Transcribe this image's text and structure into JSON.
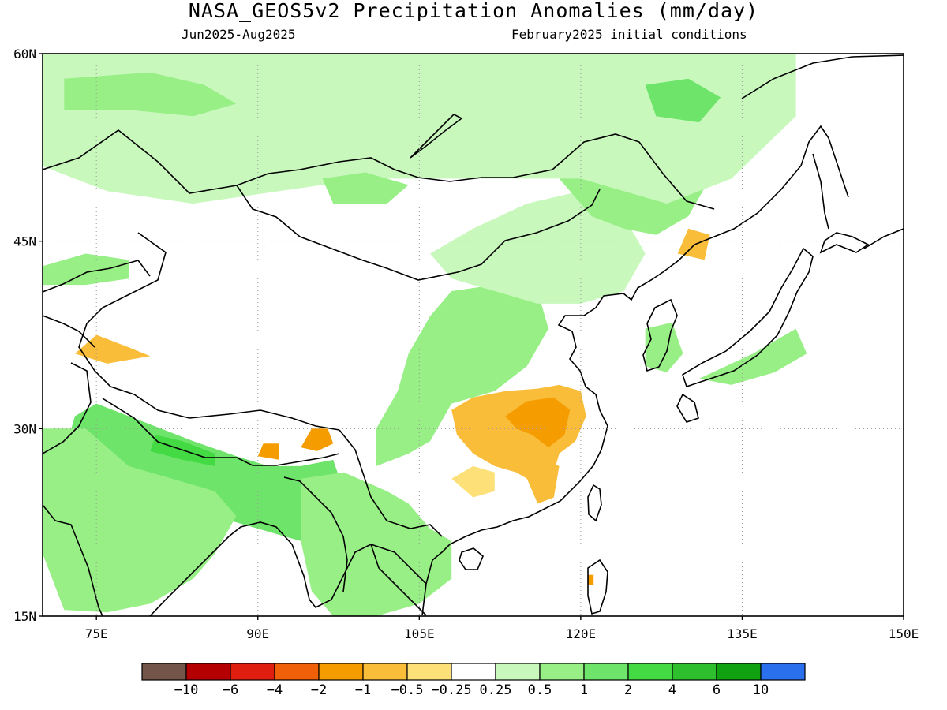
{
  "title": "NASA_GEOS5v2 Precipitation Anomalies (mm/day)",
  "subtitle_left": "Jun2025-Aug2025",
  "subtitle_right": "February2025 initial conditions",
  "map": {
    "lon_range": [
      70,
      150
    ],
    "lat_range": [
      15,
      60
    ],
    "lat_ticks": [
      {
        "value": 60,
        "label": "60N"
      },
      {
        "value": 45,
        "label": "45N"
      },
      {
        "value": 30,
        "label": "30N"
      },
      {
        "value": 15,
        "label": "15N"
      }
    ],
    "lon_ticks": [
      {
        "value": 75,
        "label": "75E"
      },
      {
        "value": 90,
        "label": "90E"
      },
      {
        "value": 105,
        "label": "105E"
      },
      {
        "value": 120,
        "label": "120E"
      },
      {
        "value": 135,
        "label": "135E"
      },
      {
        "value": 150,
        "label": "150E"
      }
    ],
    "grid": "dotted"
  },
  "colorbar": {
    "colors": [
      "#74554a",
      "#b40000",
      "#e01e10",
      "#f06008",
      "#f59d00",
      "#f9bd3a",
      "#fde178",
      "#ffffff",
      "#c8f8bc",
      "#97ef86",
      "#6ee46a",
      "#44da44",
      "#2ebf2e",
      "#11a211",
      "#2a70ec"
    ],
    "labels": [
      "-10",
      "-6",
      "-4",
      "-2",
      "-1",
      "-0.5",
      "-0.25",
      "0.25",
      "0.5",
      "1",
      "2",
      "4",
      "6",
      "10"
    ]
  },
  "regions": [
    {
      "name": "dry-anomaly-yangtze",
      "value": -1,
      "color": "#f9bd3a",
      "points": [
        [
          108,
          31.5
        ],
        [
          110,
          32.5
        ],
        [
          113,
          33
        ],
        [
          116,
          33.2
        ],
        [
          118,
          33.5
        ],
        [
          120,
          33
        ],
        [
          120.5,
          31
        ],
        [
          119.5,
          29
        ],
        [
          118,
          28
        ],
        [
          117.5,
          26.5
        ],
        [
          116,
          25.5
        ],
        [
          114,
          26.5
        ],
        [
          112,
          27
        ],
        [
          110,
          28
        ],
        [
          108.5,
          29.5
        ]
      ]
    },
    {
      "name": "dry-anomaly-yangtze-core",
      "value": -2,
      "color": "#f59d00",
      "points": [
        [
          113,
          31
        ],
        [
          115,
          32.2
        ],
        [
          117.5,
          32.5
        ],
        [
          119,
          31.5
        ],
        [
          118.5,
          29.5
        ],
        [
          117,
          28.5
        ],
        [
          115.5,
          29.5
        ],
        [
          114,
          30
        ]
      ]
    },
    {
      "name": "dry-anomaly-south-china",
      "value": -0.5,
      "color": "#fde178",
      "points": [
        [
          108,
          26
        ],
        [
          110,
          27
        ],
        [
          112,
          26.5
        ],
        [
          112,
          25
        ],
        [
          110,
          24.5
        ]
      ]
    },
    {
      "name": "dry-anomaly-fujian",
      "value": -1,
      "color": "#f9bd3a",
      "points": [
        [
          115,
          26
        ],
        [
          116.5,
          27.5
        ],
        [
          118,
          27
        ],
        [
          117.5,
          24.5
        ],
        [
          116,
          24
        ]
      ]
    },
    {
      "name": "dry-anomaly-tibet-east",
      "value": -2,
      "color": "#f59d00",
      "points": [
        [
          94,
          28.5
        ],
        [
          95,
          30
        ],
        [
          96.5,
          30
        ],
        [
          97,
          28.8
        ],
        [
          95.5,
          28.2
        ]
      ]
    },
    {
      "name": "dry-anomaly-tibet-south",
      "value": -2,
      "color": "#f59d00",
      "points": [
        [
          90,
          27.8
        ],
        [
          90.5,
          28.8
        ],
        [
          92,
          28.8
        ],
        [
          92,
          27.5
        ]
      ]
    },
    {
      "name": "dry-anomaly-manchuria",
      "value": -1,
      "color": "#f9bd3a",
      "points": [
        [
          129,
          44
        ],
        [
          130,
          46
        ],
        [
          132,
          45.5
        ],
        [
          131.5,
          43.5
        ]
      ]
    },
    {
      "name": "dry-anomaly-karakoram",
      "value": -1,
      "color": "#f9bd3a",
      "points": [
        [
          73,
          36
        ],
        [
          75,
          37.5
        ],
        [
          78,
          36.5
        ],
        [
          80,
          35.8
        ],
        [
          76,
          35.2
        ]
      ]
    },
    {
      "name": "dry-anomaly-taiwan",
      "value": -2,
      "color": "#f59d00",
      "points": [
        [
          120.7,
          17.5
        ],
        [
          121.2,
          17.5
        ],
        [
          121.2,
          18.3
        ],
        [
          120.7,
          18.3
        ]
      ]
    },
    {
      "name": "wet-anomaly-himalaya",
      "value": 2,
      "color": "#6ee46a",
      "points": [
        [
          75,
          32
        ],
        [
          78,
          31
        ],
        [
          81,
          30
        ],
        [
          84,
          29
        ],
        [
          88,
          27.8
        ],
        [
          91,
          27
        ],
        [
          94,
          27
        ],
        [
          97,
          27.5
        ],
        [
          98,
          25
        ],
        [
          97,
          22
        ],
        [
          94,
          21
        ],
        [
          90,
          22
        ],
        [
          86,
          23
        ],
        [
          82,
          23.5
        ],
        [
          78,
          22
        ],
        [
          76,
          24
        ],
        [
          73,
          25
        ],
        [
          72,
          28
        ],
        [
          73,
          31
        ]
      ]
    },
    {
      "name": "wet-anomaly-india",
      "value": 1,
      "color": "#97ef86",
      "points": [
        [
          70,
          30
        ],
        [
          74,
          30
        ],
        [
          78,
          27
        ],
        [
          82,
          26
        ],
        [
          86,
          25
        ],
        [
          88,
          23
        ],
        [
          86,
          20
        ],
        [
          84,
          18
        ],
        [
          80,
          16
        ],
        [
          76,
          15.3
        ],
        [
          72,
          15.5
        ],
        [
          70,
          20
        ]
      ]
    },
    {
      "name": "wet-anomaly-nepal-core",
      "value": 4,
      "color": "#44da44",
      "points": [
        [
          80.5,
          29.5
        ],
        [
          83,
          29
        ],
        [
          86,
          28
        ],
        [
          86,
          27
        ],
        [
          83,
          27.5
        ],
        [
          80,
          28.2
        ]
      ]
    },
    {
      "name": "wet-anomaly-indochina",
      "value": 1,
      "color": "#97ef86",
      "points": [
        [
          94,
          26
        ],
        [
          98,
          26.5
        ],
        [
          102,
          25
        ],
        [
          104,
          24
        ],
        [
          106,
          22
        ],
        [
          108,
          21
        ],
        [
          108,
          18
        ],
        [
          105,
          16
        ],
        [
          101,
          15
        ],
        [
          97,
          15
        ],
        [
          95,
          17
        ],
        [
          94,
          21
        ]
      ]
    },
    {
      "name": "wet-anomaly-central-china",
      "value": 1,
      "color": "#97ef86",
      "points": [
        [
          101,
          30
        ],
        [
          103,
          33
        ],
        [
          104,
          36
        ],
        [
          106,
          39
        ],
        [
          108,
          41
        ],
        [
          112,
          41.5
        ],
        [
          116,
          41
        ],
        [
          117,
          38
        ],
        [
          115,
          35
        ],
        [
          112,
          33
        ],
        [
          108,
          32
        ],
        [
          106,
          29
        ],
        [
          104,
          28
        ],
        [
          101,
          27
        ]
      ]
    },
    {
      "name": "wet-anomaly-north-china",
      "value": 0.5,
      "color": "#c8f8bc",
      "points": [
        [
          106,
          44
        ],
        [
          110,
          46
        ],
        [
          115,
          48
        ],
        [
          120,
          49
        ],
        [
          124,
          47
        ],
        [
          126,
          44
        ],
        [
          124,
          41
        ],
        [
          120,
          40
        ],
        [
          116,
          40
        ],
        [
          112,
          41
        ],
        [
          108,
          42
        ]
      ]
    },
    {
      "name": "wet-anomaly-northeast",
      "value": 1,
      "color": "#97ef86",
      "points": [
        [
          118,
          50
        ],
        [
          122,
          52
        ],
        [
          126,
          53
        ],
        [
          130,
          53
        ],
        [
          132,
          50
        ],
        [
          130,
          47
        ],
        [
          127,
          45.5
        ],
        [
          124,
          46
        ],
        [
          121,
          47
        ]
      ]
    },
    {
      "name": "wet-anomaly-siberia",
      "value": 0.5,
      "color": "#c8f8bc",
      "points": [
        [
          70,
          60
        ],
        [
          90,
          60
        ],
        [
          108,
          60
        ],
        [
          125,
          60
        ],
        [
          140,
          60
        ],
        [
          140,
          55
        ],
        [
          134,
          50
        ],
        [
          128,
          48
        ],
        [
          120,
          50
        ],
        [
          110,
          50
        ],
        [
          100,
          50
        ],
        [
          92,
          49
        ],
        [
          84,
          48
        ],
        [
          76,
          49
        ],
        [
          70,
          51
        ]
      ]
    },
    {
      "name": "wet-anomaly-siberia-core",
      "value": 1,
      "color": "#97ef86",
      "points": [
        [
          72,
          58
        ],
        [
          80,
          58.5
        ],
        [
          85,
          57.5
        ],
        [
          88,
          56
        ],
        [
          84,
          55
        ],
        [
          78,
          55.5
        ],
        [
          72,
          55.5
        ]
      ]
    },
    {
      "name": "wet-anomaly-siberia-east",
      "value": 2,
      "color": "#6ee46a",
      "points": [
        [
          126,
          57.5
        ],
        [
          130,
          58
        ],
        [
          133,
          56.5
        ],
        [
          131,
          54.5
        ],
        [
          127,
          55
        ]
      ]
    },
    {
      "name": "wet-anomaly-mongolia-west",
      "value": 1,
      "color": "#97ef86",
      "points": [
        [
          96,
          50
        ],
        [
          100,
          50.5
        ],
        [
          104,
          49.5
        ],
        [
          102,
          48
        ],
        [
          97,
          48
        ]
      ]
    },
    {
      "name": "wet-anomaly-korea",
      "value": 1,
      "color": "#97ef86",
      "points": [
        [
          126,
          38
        ],
        [
          128.5,
          38.5
        ],
        [
          129.5,
          36
        ],
        [
          128,
          34.5
        ],
        [
          126,
          35
        ]
      ]
    },
    {
      "name": "wet-anomaly-japan",
      "value": 1,
      "color": "#97ef86",
      "points": [
        [
          131,
          34
        ],
        [
          136,
          36
        ],
        [
          140,
          38
        ],
        [
          141,
          36
        ],
        [
          138,
          34.5
        ],
        [
          134,
          33.5
        ]
      ]
    },
    {
      "name": "wet-anomaly-kazakh",
      "value": 1,
      "color": "#97ef86",
      "points": [
        [
          70,
          43
        ],
        [
          74,
          44
        ],
        [
          78,
          43.5
        ],
        [
          78,
          42
        ],
        [
          74,
          41.5
        ],
        [
          70,
          41.5
        ]
      ]
    }
  ]
}
